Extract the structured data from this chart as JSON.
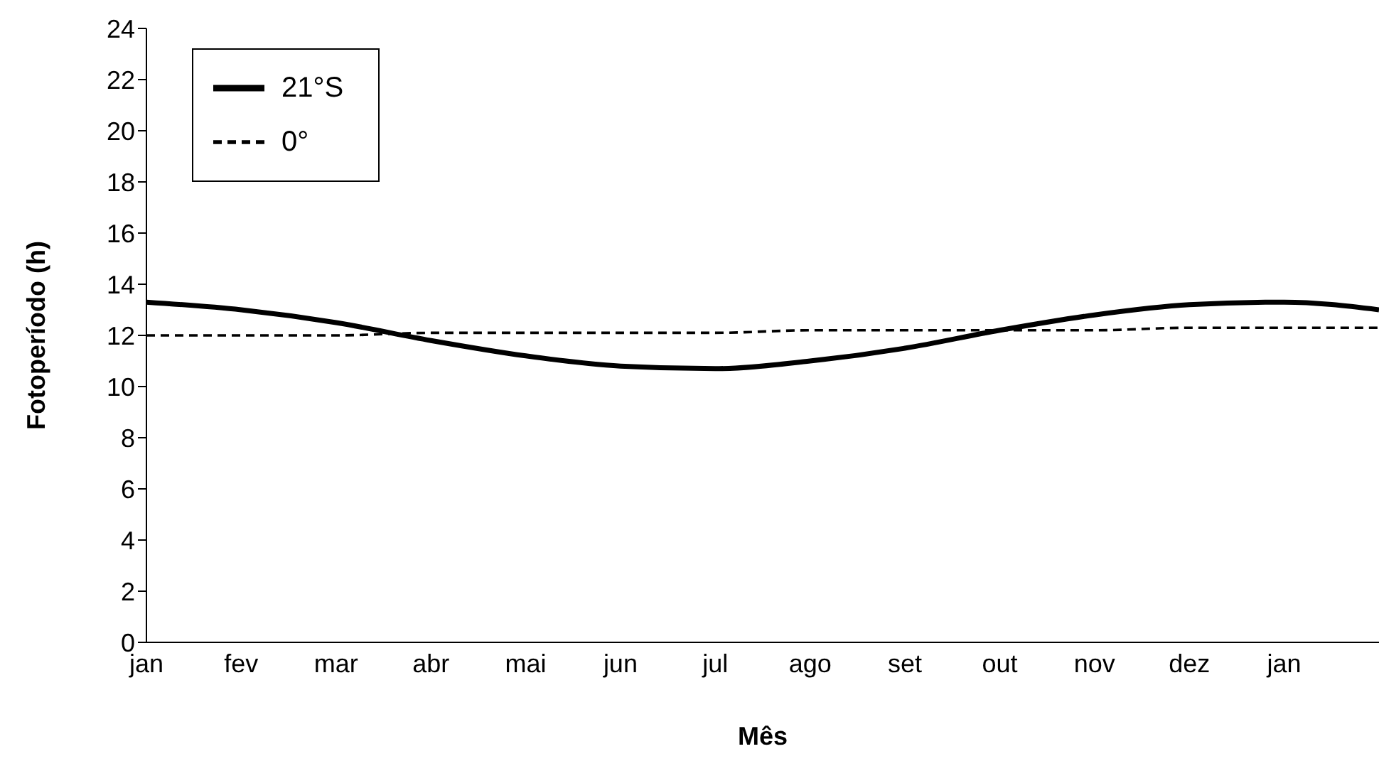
{
  "chart_data": {
    "type": "line",
    "xlabel": "Mês",
    "ylabel": "Fotoperíodo (h)",
    "categories": [
      "jan",
      "fev",
      "mar",
      "abr",
      "mai",
      "jun",
      "jul",
      "ago",
      "set",
      "out",
      "nov",
      "dez",
      "jan",
      null
    ],
    "ylim": [
      0,
      24
    ],
    "yticks": [
      0,
      2,
      4,
      6,
      8,
      10,
      12,
      14,
      16,
      18,
      20,
      22,
      24
    ],
    "legend": "top left",
    "marker": "none",
    "series": [
      {
        "name": "21°S",
        "color": "#000000",
        "line_style": "solid",
        "values": [
          13.3,
          13.0,
          12.5,
          11.8,
          11.2,
          10.8,
          10.7,
          11.0,
          11.5,
          12.2,
          12.8,
          13.2,
          13.3,
          13.0
        ]
      },
      {
        "name": "0°",
        "color": "#000000",
        "line_style": "dashed",
        "values": [
          12.0,
          12.0,
          12.0,
          12.1,
          12.1,
          12.1,
          12.1,
          12.2,
          12.2,
          12.2,
          12.2,
          12.3,
          12.3,
          12.3
        ]
      }
    ]
  }
}
